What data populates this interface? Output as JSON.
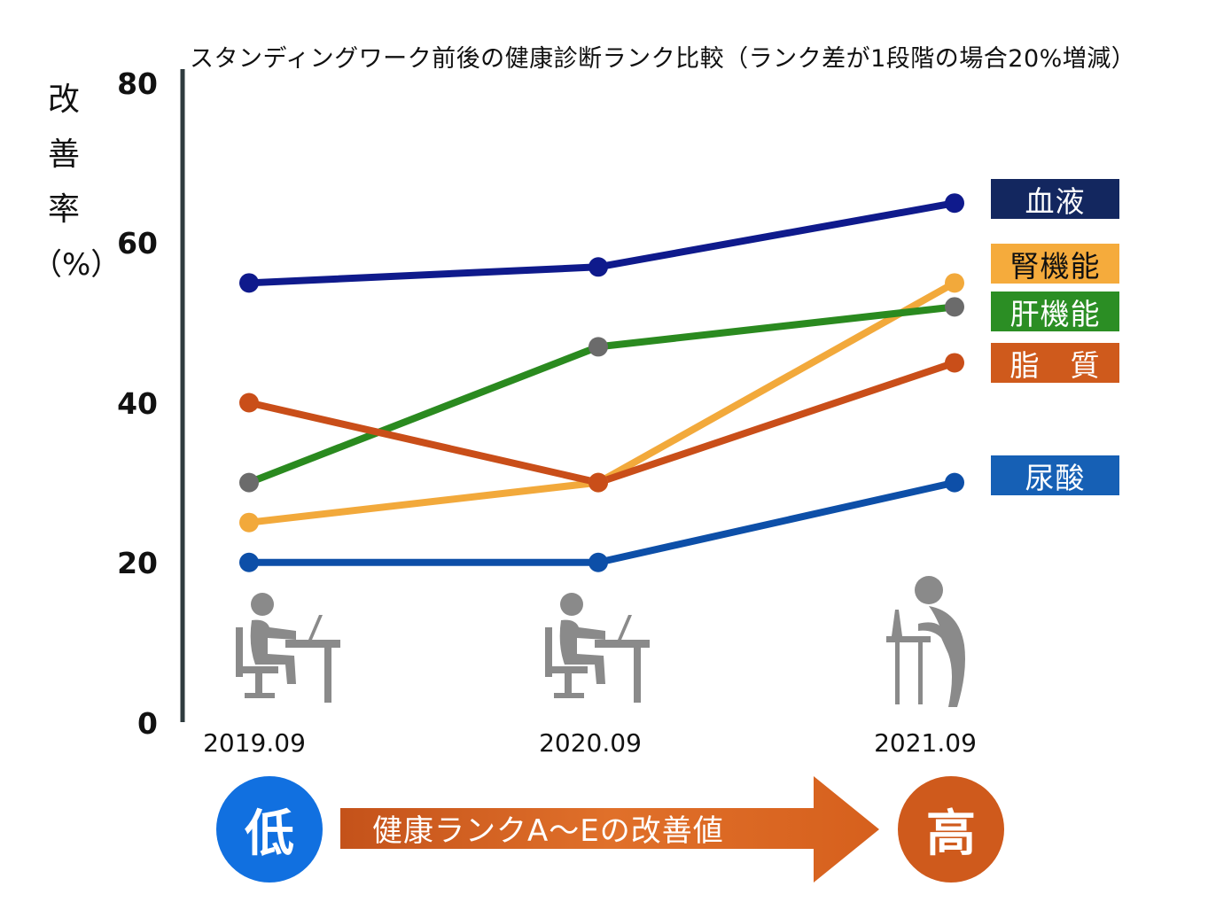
{
  "chart_data": {
    "type": "line",
    "title": "スタンディングワーク前後の健康診断ランク比較（ランク差が1段階の場合20%増減）",
    "ylabel": [
      "改",
      "善",
      "率",
      "（%）"
    ],
    "xlabel": "",
    "categories": [
      "2019.09",
      "2020.09",
      "2021.09"
    ],
    "ylim": [
      0,
      80
    ],
    "yticks": [
      "0",
      "20",
      "40",
      "60",
      "80"
    ],
    "grid": true,
    "legend_placement": "right",
    "series": [
      {
        "name": "血液",
        "values": [
          55,
          57,
          65
        ],
        "color": "#0f1a8c",
        "marker_colors": [
          "#0f1a8c",
          "#0f1a8c",
          "#0f1a8c"
        ],
        "legend_color": "#13275f"
      },
      {
        "name": "腎機能",
        "values": [
          25,
          30,
          55
        ],
        "color": "#f2a93b",
        "marker_colors": [
          "#f2a93b",
          "#f2a93b",
          "#f2a93b"
        ],
        "legend_color": "#f5ab3c"
      },
      {
        "name": "肝機能",
        "values": [
          30,
          47,
          52
        ],
        "color": "#2a8a1f",
        "marker_colors": [
          "#6b6b6b",
          "#6b6b6b",
          "#6b6b6b"
        ],
        "legend_color": "#2b8e24"
      },
      {
        "name": "脂　質",
        "values": [
          40,
          30,
          45
        ],
        "color": "#c94e19",
        "marker_colors": [
          "#c94e19",
          "#c94e19",
          "#c94e19"
        ],
        "legend_color": "#cf5a1c"
      },
      {
        "name": "尿酸",
        "values": [
          20,
          20,
          30
        ],
        "color": "#0d4fa8",
        "marker_colors": [
          "#0d4fa8",
          "#0d4fa8",
          "#0d4fa8"
        ],
        "legend_color": "#1660b5"
      }
    ]
  },
  "bottom": {
    "low_label": "低",
    "high_label": "高",
    "arrow_label": "健康ランクA〜Eの改善値",
    "low_color": "#1170e0",
    "high_color": "#cf5a1c",
    "arrow_color": "#d9601d"
  },
  "icons": [
    "seated-worker-icon",
    "seated-worker-icon",
    "standing-worker-icon"
  ]
}
